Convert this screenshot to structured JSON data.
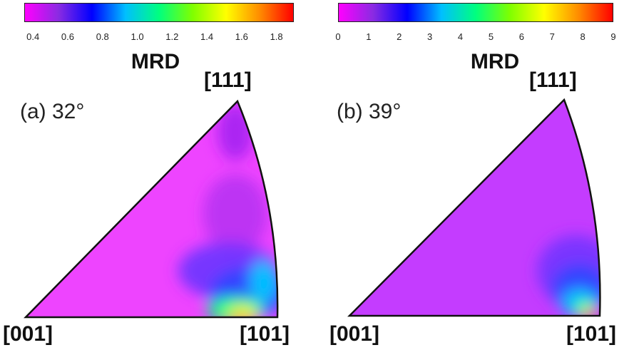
{
  "colors": {
    "colormap": [
      "#ff00ff",
      "#8a2be2",
      "#0000ff",
      "#00bfff",
      "#00ff7f",
      "#7fff00",
      "#ffff00",
      "#ff8c00",
      "#ff0000"
    ],
    "background": "#ee55ff",
    "outline": "#111111"
  },
  "panels": [
    {
      "label": "(a) 32°",
      "colorbar_title": "MRD",
      "colorbar_ticks": [
        "0.4",
        "0.6",
        "0.8",
        "1.0",
        "1.2",
        "1.4",
        "1.6",
        "1.8"
      ],
      "colorbar_range": [
        0.35,
        1.9
      ],
      "corner_labels": {
        "top": "[111]",
        "left": "[001]",
        "right": "[101]"
      }
    },
    {
      "label": "(b) 39°",
      "colorbar_title": "MRD",
      "colorbar_ticks": [
        "0",
        "1",
        "2",
        "3",
        "4",
        "5",
        "6",
        "7",
        "8",
        "9"
      ],
      "colorbar_range": [
        0,
        9
      ],
      "corner_labels": {
        "top": "[111]",
        "left": "[001]",
        "right": "[101]"
      }
    }
  ]
}
